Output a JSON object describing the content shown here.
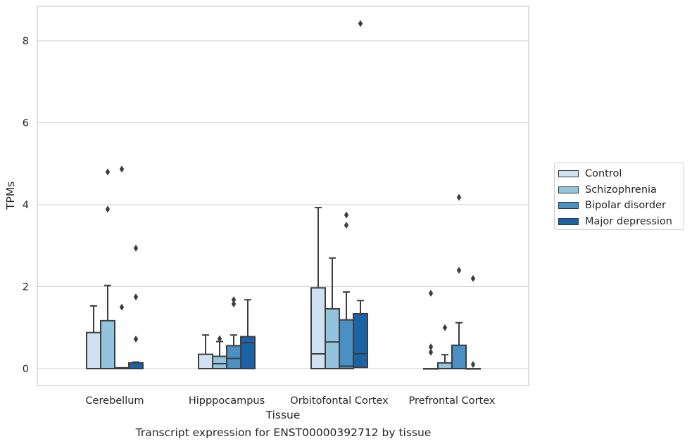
{
  "chart_data": {
    "type": "box",
    "title": "",
    "caption": "Transcript expression for ENST00000392712 by tissue",
    "xlabel": "Tissue",
    "ylabel": "TPMs",
    "ylim": [
      -0.4,
      8.85
    ],
    "yticks": [
      0,
      2,
      4,
      6,
      8
    ],
    "grid": true,
    "legend_position": "right",
    "categories": [
      "Cerebellum",
      "Hipppocampus",
      "Orbitofontal Cortex",
      "Prefrontal Cortex"
    ],
    "series": [
      {
        "name": "Control",
        "color": "#d0e1f2"
      },
      {
        "name": "Schizophrenia",
        "color": "#93c4de"
      },
      {
        "name": "Bipolar disorder",
        "color": "#4a90c4"
      },
      {
        "name": "Major depression",
        "color": "#1c62a7"
      }
    ],
    "boxes": [
      [
        {
          "q1": 0,
          "median": 0,
          "q3": 0.88,
          "whisker_low": 0,
          "whisker_high": 1.53,
          "outliers": []
        },
        {
          "q1": 0,
          "median": 0,
          "q3": 1.17,
          "whisker_low": 0,
          "whisker_high": 2.03,
          "outliers": [
            4.8,
            3.89
          ]
        },
        {
          "q1": 0,
          "median": 0,
          "q3": 0.02,
          "whisker_low": 0,
          "whisker_high": 0.02,
          "outliers": [
            4.87,
            1.5
          ]
        },
        {
          "q1": 0,
          "median": 0,
          "q3": 0.14,
          "whisker_low": 0,
          "whisker_high": 0.16,
          "outliers": [
            2.94,
            1.75,
            0.72
          ]
        }
      ],
      [
        {
          "q1": 0,
          "median": 0,
          "q3": 0.35,
          "whisker_low": 0,
          "whisker_high": 0.82,
          "outliers": []
        },
        {
          "q1": 0,
          "median": 0.12,
          "q3": 0.3,
          "whisker_low": 0,
          "whisker_high": 0.66,
          "outliers": [
            0.73
          ]
        },
        {
          "q1": 0,
          "median": 0.25,
          "q3": 0.56,
          "whisker_low": 0,
          "whisker_high": 0.82,
          "outliers": [
            1.68,
            1.58
          ]
        },
        {
          "q1": 0,
          "median": 0.63,
          "q3": 0.78,
          "whisker_low": 0,
          "whisker_high": 1.68,
          "outliers": []
        }
      ],
      [
        {
          "q1": 0,
          "median": 0.36,
          "q3": 1.97,
          "whisker_low": 0,
          "whisker_high": 3.93,
          "outliers": []
        },
        {
          "q1": 0,
          "median": 0.65,
          "q3": 1.46,
          "whisker_low": 0,
          "whisker_high": 2.7,
          "outliers": []
        },
        {
          "q1": 0,
          "median": 0.06,
          "q3": 1.19,
          "whisker_low": 0,
          "whisker_high": 1.87,
          "outliers": [
            3.75,
            3.5
          ]
        },
        {
          "q1": 0.03,
          "median": 0.36,
          "q3": 1.34,
          "whisker_low": 0,
          "whisker_high": 1.66,
          "outliers": [
            8.42
          ]
        }
      ],
      [
        {
          "q1": 0,
          "median": 0,
          "q3": 0,
          "whisker_low": 0,
          "whisker_high": 0,
          "outliers": [
            1.84,
            0.53,
            0.4
          ]
        },
        {
          "q1": 0,
          "median": 0,
          "q3": 0.14,
          "whisker_low": 0,
          "whisker_high": 0.34,
          "outliers": [
            1.0
          ]
        },
        {
          "q1": 0,
          "median": 0,
          "q3": 0.57,
          "whisker_low": 0,
          "whisker_high": 1.12,
          "outliers": [
            4.18,
            2.4
          ]
        },
        {
          "q1": 0,
          "median": 0,
          "q3": 0,
          "whisker_low": 0,
          "whisker_high": 0,
          "outliers": [
            2.2,
            0.1
          ]
        }
      ]
    ]
  }
}
